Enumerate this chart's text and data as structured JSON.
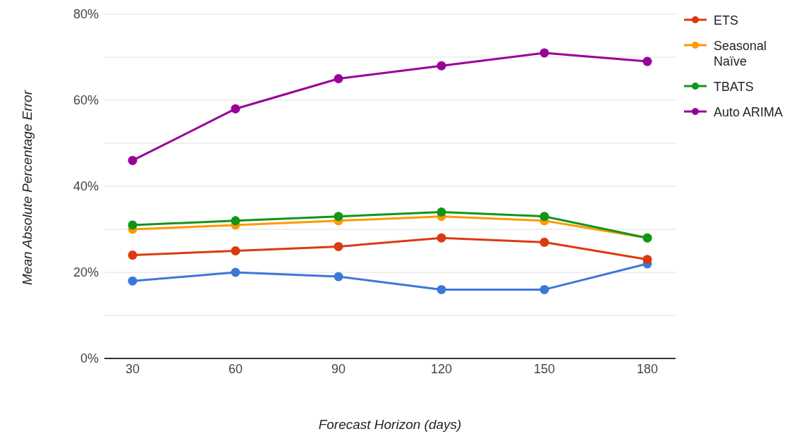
{
  "chart_data": {
    "type": "line",
    "xlabel": "Forecast Horizon (days)",
    "ylabel": "Mean Absolute Percentage Error",
    "categories": [
      "30",
      "60",
      "90",
      "120",
      "150",
      "180"
    ],
    "series": [
      {
        "color": "#3c78d8",
        "values": [
          18,
          20,
          19,
          16,
          16,
          22
        ]
      },
      {
        "name": "ETS",
        "color": "#dc3912",
        "values": [
          24,
          25,
          26,
          28,
          27,
          23
        ]
      },
      {
        "name": "Seasonal Naïve",
        "color": "#ff9900",
        "values": [
          30,
          31,
          32,
          33,
          32,
          28
        ]
      },
      {
        "name": "TBATS",
        "color": "#109618",
        "values": [
          31,
          32,
          33,
          34,
          33,
          28
        ]
      },
      {
        "name": "Auto ARIMA",
        "color": "#990099",
        "values": [
          46,
          58,
          65,
          68,
          71,
          69
        ]
      }
    ],
    "ylim": [
      0,
      80
    ],
    "yticks": [
      {
        "value": 0,
        "label": "0%"
      },
      {
        "value": 10,
        "label": null
      },
      {
        "value": 20,
        "label": "20%"
      },
      {
        "value": 30,
        "label": null
      },
      {
        "value": 40,
        "label": "40%"
      },
      {
        "value": 50,
        "label": null
      },
      {
        "value": 60,
        "label": "60%"
      },
      {
        "value": 70,
        "label": null
      },
      {
        "value": 80,
        "label": "80%"
      }
    ],
    "grid": "y",
    "legend": "top right",
    "marker": "circle",
    "line_style": "solid"
  }
}
